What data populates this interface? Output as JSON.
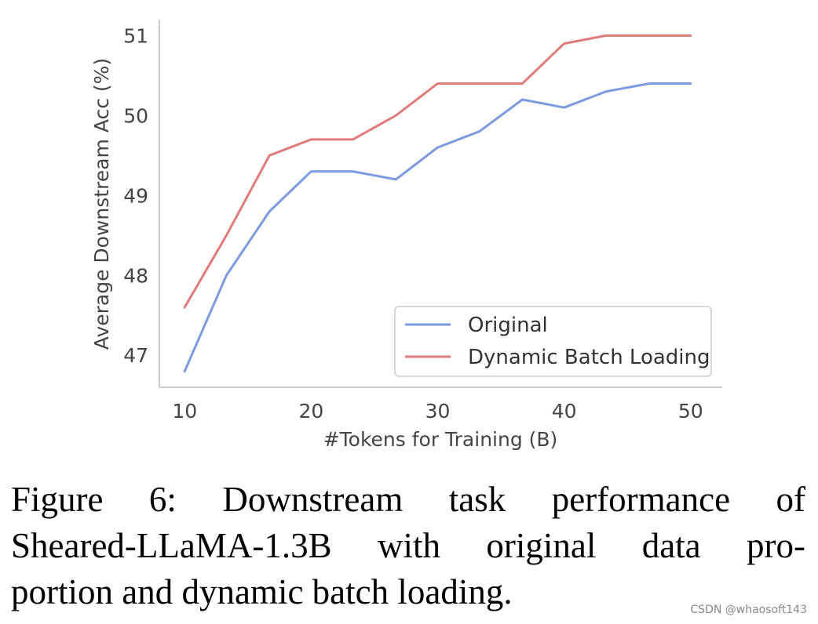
{
  "chart_data": {
    "type": "line",
    "xlabel": "#Tokens for Training (B)",
    "ylabel": "Average Downstream Acc (%)",
    "xlim": [
      8,
      52.5
    ],
    "ylim": [
      46.6,
      51.2
    ],
    "xticks": [
      10,
      20,
      30,
      40,
      50
    ],
    "yticks": [
      47,
      48,
      49,
      50,
      51
    ],
    "grid": false,
    "legend_position": "lower-right",
    "x": [
      10,
      13.3,
      16.7,
      20,
      23.3,
      26.7,
      30,
      33.3,
      36.7,
      40,
      43.3,
      46.7,
      50
    ],
    "series": [
      {
        "name": "Original",
        "color": "#7b9ae0",
        "values": [
          46.8,
          48.0,
          48.8,
          49.3,
          49.3,
          49.2,
          49.6,
          49.8,
          50.2,
          50.1,
          50.3,
          50.4,
          50.4
        ]
      },
      {
        "name": "Dynamic Batch Loading",
        "color": "#e07b7b",
        "values": [
          47.6,
          48.5,
          49.5,
          49.7,
          49.7,
          50.0,
          50.4,
          50.4,
          50.4,
          50.9,
          51.0,
          51.0,
          51.0
        ]
      }
    ]
  },
  "caption": {
    "lines": [
      "Figure 6:  Downstream task performance of",
      "Sheared-LLaMA-1.3B with original data pro-",
      "portion and dynamic batch loading."
    ]
  },
  "watermark": "CSDN @whaosoft143"
}
